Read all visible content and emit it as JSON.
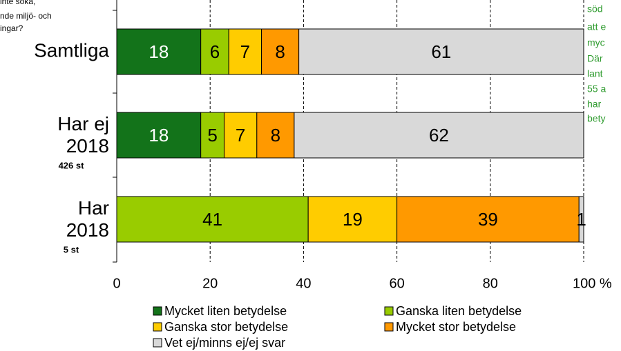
{
  "chart_data": {
    "type": "stacked_barh",
    "annotations_left": [
      "inte söka,",
      "nde miljö- och",
      "ingar?"
    ],
    "annotations_right": [
      "söd",
      "att e",
      "myc",
      "Där",
      "lant",
      "55 a",
      "har",
      "bety"
    ],
    "categories": [
      "Samtliga",
      "Har ej 2018",
      "Har 2018"
    ],
    "category_notes": [
      null,
      "426 st",
      "5 st"
    ],
    "series": [
      {
        "name": "Mycket liten betydelse",
        "color": "#13731a",
        "label_color": "#ffffff",
        "values": [
          18,
          18,
          0
        ]
      },
      {
        "name": "Ganska liten betydelse",
        "color": "#99cc00",
        "label_color": "#000000",
        "values": [
          6,
          5,
          41
        ]
      },
      {
        "name": "Ganska stor betydelse",
        "color": "#ffcc00",
        "label_color": "#000000",
        "values": [
          7,
          7,
          19
        ]
      },
      {
        "name": "Mycket stor betydelse",
        "color": "#ff9900",
        "label_color": "#000000",
        "values": [
          8,
          8,
          39
        ]
      },
      {
        "name": "Vet ej/minns ej/ej svar",
        "color": "#d9d9d9",
        "label_color": "#000000",
        "values": [
          61,
          62,
          1
        ]
      }
    ],
    "xlim": [
      0,
      100
    ],
    "xticks": [
      0,
      20,
      40,
      60,
      80,
      {
        "value": 100,
        "label": "100 %"
      }
    ],
    "grid": true
  }
}
